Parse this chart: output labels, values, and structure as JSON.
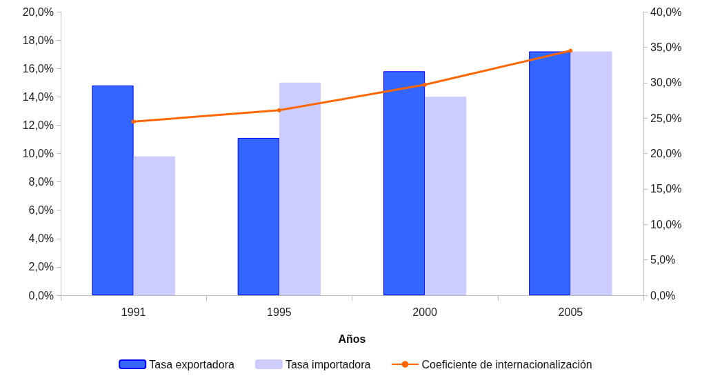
{
  "chart_data": {
    "type": "bar",
    "xlabel": "Años",
    "categories": [
      "1991",
      "1995",
      "2000",
      "2005"
    ],
    "series": [
      {
        "name": "Tasa exportadora",
        "color": "#3366ff",
        "values": [
          14.8,
          11.1,
          15.8,
          17.2
        ]
      },
      {
        "name": "Tasa importadora",
        "color": "#ccccff",
        "values": [
          9.8,
          15.0,
          14.0,
          17.2
        ]
      },
      {
        "name": "Coeficiente de internacionalización",
        "type": "line",
        "axis": "y2",
        "color": "#ff6600",
        "values": [
          24.5,
          26.1,
          29.7,
          34.5
        ],
        "marker": "circle",
        "line_style": "solid"
      }
    ],
    "ylim": [
      0,
      20
    ],
    "yticks": [
      {
        "value": 0,
        "label": "0,0%"
      },
      {
        "value": 2,
        "label": "2,0%"
      },
      {
        "value": 4,
        "label": "4,0%"
      },
      {
        "value": 6,
        "label": "6,0%"
      },
      {
        "value": 8,
        "label": "8,0%"
      },
      {
        "value": 10,
        "label": "10,0%"
      },
      {
        "value": 12,
        "label": "12,0%"
      },
      {
        "value": 14,
        "label": "14,0%"
      },
      {
        "value": 16,
        "label": "16,0%"
      },
      {
        "value": 18,
        "label": "18,0%"
      },
      {
        "value": 20,
        "label": "20,0%"
      }
    ],
    "y2lim": [
      0,
      40
    ],
    "y2ticks": [
      {
        "value": 0,
        "label": "0,0%"
      },
      {
        "value": 5,
        "label": "5,0%"
      },
      {
        "value": 10,
        "label": "10,0%"
      },
      {
        "value": 15,
        "label": "15,0%"
      },
      {
        "value": 20,
        "label": "20,0%"
      },
      {
        "value": 25,
        "label": "25,0%"
      },
      {
        "value": 30,
        "label": "30,0%"
      },
      {
        "value": 35,
        "label": "35,0%"
      },
      {
        "value": 40,
        "label": "40,0%"
      }
    ],
    "grid": false,
    "legend": "bottom"
  }
}
